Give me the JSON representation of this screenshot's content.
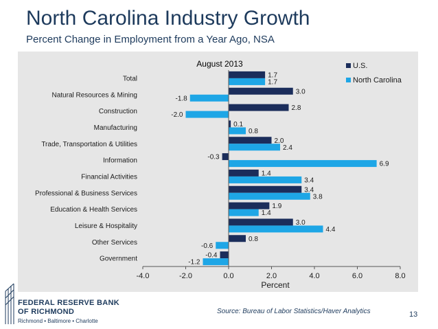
{
  "page": {
    "title": "North Carolina Industry Growth",
    "subtitle": "Percent Change in Employment from a Year Ago, NSA",
    "source": "Source: Bureau of Labor Statistics/Haver Analytics",
    "page_number": "13"
  },
  "logo": {
    "line1": "FEDERAL RESERVE BANK",
    "line2": "OF RICHMOND",
    "line3": "Richmond • Baltimore • Charlotte"
  },
  "colors": {
    "us": "#1b2d5b",
    "nc": "#1ea6e6",
    "brand": "#1d3a5c"
  },
  "chart_data": {
    "type": "bar",
    "orientation": "horizontal",
    "title": "August  2013",
    "xlabel": "Percent",
    "ylabel": "",
    "xlim": [
      -4.0,
      8.0
    ],
    "xticks": [
      "-4.0",
      "-2.0",
      "0.0",
      "2.0",
      "4.0",
      "6.0",
      "8.0"
    ],
    "categories": [
      "Total",
      "Natural Resources & Mining",
      "Construction",
      "Manufacturing",
      "Trade, Transportation & Utilities",
      "Information",
      "Financial Activities",
      "Professional & Business Services",
      "Education & Health Services",
      "Leisure & Hospitality",
      "Other Services",
      "Government"
    ],
    "series": [
      {
        "name": "U.S.",
        "values": [
          1.7,
          3.0,
          2.8,
          0.1,
          2.0,
          -0.3,
          1.4,
          3.4,
          1.9,
          3.0,
          0.8,
          -0.4
        ]
      },
      {
        "name": "North Carolina",
        "values": [
          1.7,
          -1.8,
          -2.0,
          0.8,
          2.4,
          6.9,
          3.4,
          3.8,
          1.4,
          4.4,
          -0.6,
          -1.2
        ]
      }
    ],
    "legend_position": "top-right",
    "grid": false
  }
}
